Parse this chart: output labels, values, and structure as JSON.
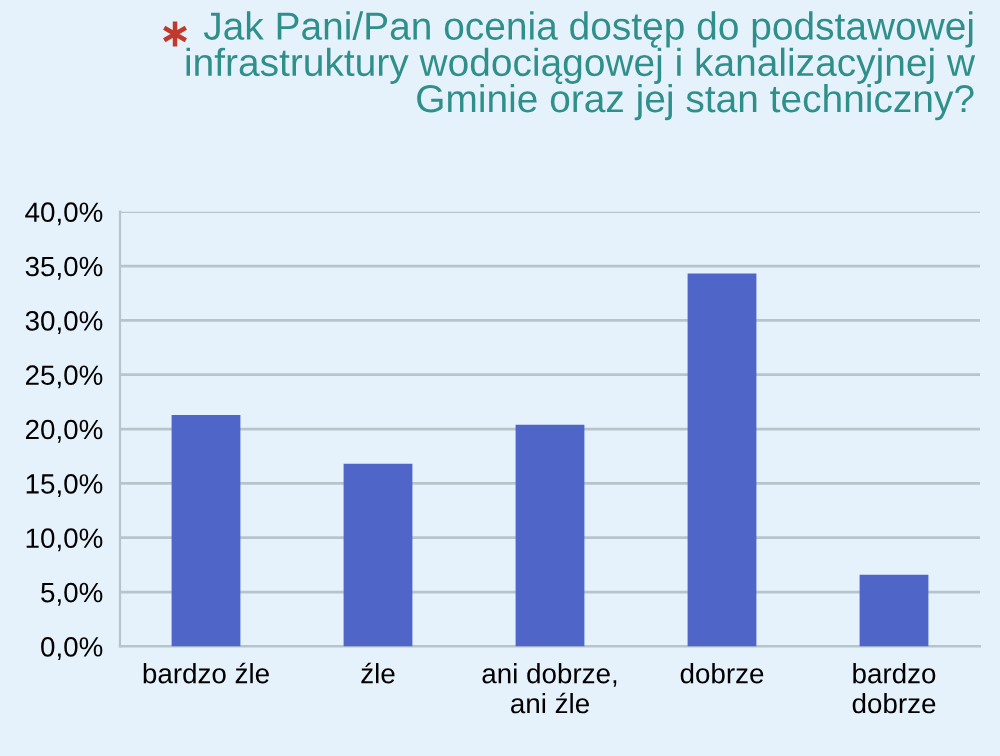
{
  "chart_data": {
    "type": "bar",
    "title": "Jak Pani/Pan ocenia dostęp do podstawowej\ninfrastruktury wodociągowej i kanalizacyjnej w\nGminie oraz jej stan techniczny?",
    "categories": [
      "bardzo źle",
      "źle",
      "ani dobrze,\nani źle",
      "dobrze",
      "bardzo\ndobrze"
    ],
    "values": [
      21.3,
      16.8,
      20.4,
      34.3,
      6.6
    ],
    "color": "#4f66c8",
    "ylim": [
      0,
      40
    ],
    "yticks": [
      {
        "value": 0,
        "label": "0,0%"
      },
      {
        "value": 5,
        "label": "5,0%"
      },
      {
        "value": 10,
        "label": "10,0%"
      },
      {
        "value": 15,
        "label": "15,0%"
      },
      {
        "value": 20,
        "label": "20,0%"
      },
      {
        "value": 25,
        "label": "25,0%"
      },
      {
        "value": 30,
        "label": "30,0%"
      },
      {
        "value": 35,
        "label": "35,0%"
      },
      {
        "value": 40,
        "label": "40,0%"
      }
    ],
    "grid": "y"
  }
}
